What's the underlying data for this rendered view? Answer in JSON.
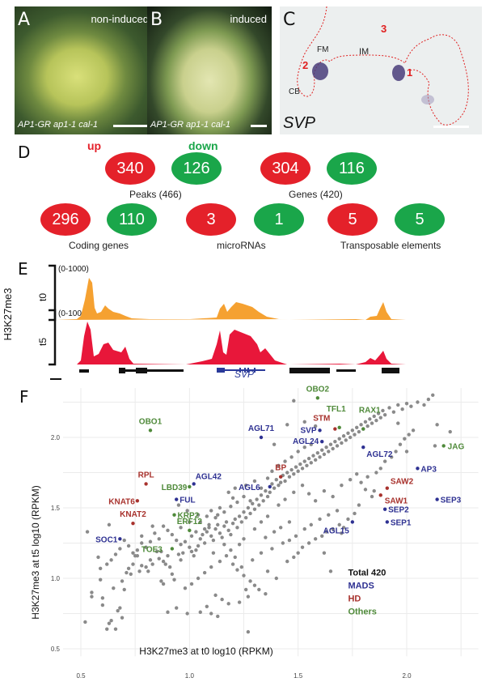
{
  "panels": {
    "A": {
      "letter": "A",
      "tag": "non-induced",
      "caption": "AP1-GR ap1-1 cal-1"
    },
    "B": {
      "letter": "B",
      "tag": "induced",
      "caption": "AP1-GR ap1-1 cal-1"
    },
    "C": {
      "letter": "C",
      "gene": "SVP",
      "labels": {
        "fm": "FM",
        "im": "IM",
        "cb": "CB",
        "n1": "1",
        "n2": "2",
        "n3": "3"
      }
    },
    "D": {
      "letter": "D",
      "up_label": "up",
      "down_label": "down",
      "colors": {
        "up": "#e4212a",
        "down": "#1aa64a"
      },
      "groups": [
        {
          "label": "Peaks (466)",
          "up": 340,
          "down": 126
        },
        {
          "label": "Genes (420)",
          "up": 304,
          "down": 116
        },
        {
          "label": "Coding genes",
          "up": 296,
          "down": 110
        },
        {
          "label": "microRNAs",
          "up": 3,
          "down": 1
        },
        {
          "label": "Transposable elements",
          "up": 5,
          "down": 5
        }
      ]
    },
    "E": {
      "letter": "E",
      "ylabel": "H3K27me3",
      "tracks": [
        {
          "name": "t0",
          "range": "(0-1000)",
          "color": "#f5a131"
        },
        {
          "name": "t5",
          "range": "(0-1000)",
          "color": "#e8173a"
        }
      ],
      "gene_label": "SVP",
      "gene_color": "#2a3a9a"
    }
  },
  "chart_data": {
    "type": "scatter",
    "panel_letter": "F",
    "xlabel": "H3K27me3 at t0 log10 (RPKM)",
    "ylabel": "H3K27me3 at t5 log10 (RPKM)",
    "xlim": [
      0.5,
      2.3
    ],
    "ylim": [
      0.47,
      2.35
    ],
    "xticks": [
      "0.5",
      "1.0",
      "1.5",
      "2.0"
    ],
    "yticks": [
      "0.5",
      "1.0",
      "1.5",
      "2.0"
    ],
    "xtick_values": [
      0.5,
      1.0,
      1.5,
      2.0
    ],
    "ytick_values": [
      0.5,
      1.0,
      1.5,
      2.0
    ],
    "grid": true,
    "legend": {
      "position": "bottom-right",
      "entries": [
        {
          "label": "Total 420",
          "color": "#111111"
        },
        {
          "label": "MADS",
          "color": "#2e3192"
        },
        {
          "label": "HD",
          "color": "#a8322d"
        },
        {
          "label": "Others",
          "color": "#4f8a3a"
        }
      ]
    },
    "category_colors": {
      "MADS": "#2e3192",
      "HD": "#a8322d",
      "Others": "#4f8a3a",
      "background": "#8a8a8a"
    },
    "labeled_points": [
      {
        "gene": "OBO1",
        "x": 0.82,
        "y": 2.05,
        "class": "Others"
      },
      {
        "gene": "OBO2",
        "x": 1.59,
        "y": 2.28,
        "class": "Others"
      },
      {
        "gene": "TFL1",
        "x": 1.69,
        "y": 2.07,
        "class": "Others"
      },
      {
        "gene": "STM",
        "x": 1.67,
        "y": 2.06,
        "class": "HD"
      },
      {
        "gene": "RAX1",
        "x": 1.8,
        "y": 2.06,
        "class": "Others"
      },
      {
        "gene": "AGL71",
        "x": 1.33,
        "y": 2.0,
        "class": "MADS"
      },
      {
        "gene": "SVP",
        "x": 1.6,
        "y": 2.05,
        "class": "MADS"
      },
      {
        "gene": "AGL24",
        "x": 1.61,
        "y": 1.97,
        "class": "MADS"
      },
      {
        "gene": "AGL72",
        "x": 1.8,
        "y": 1.93,
        "class": "MADS"
      },
      {
        "gene": "JAG",
        "x": 2.17,
        "y": 1.94,
        "class": "Others"
      },
      {
        "gene": "AP3",
        "x": 2.05,
        "y": 1.78,
        "class": "MADS"
      },
      {
        "gene": "BP",
        "x": 1.42,
        "y": 1.72,
        "class": "HD"
      },
      {
        "gene": "AGL6",
        "x": 1.37,
        "y": 1.65,
        "class": "MADS"
      },
      {
        "gene": "AGL42",
        "x": 1.02,
        "y": 1.67,
        "class": "MADS"
      },
      {
        "gene": "LBD39",
        "x": 1.0,
        "y": 1.65,
        "class": "Others"
      },
      {
        "gene": "RPL",
        "x": 0.8,
        "y": 1.67,
        "class": "HD"
      },
      {
        "gene": "FUL",
        "x": 0.94,
        "y": 1.56,
        "class": "MADS"
      },
      {
        "gene": "KNAT6",
        "x": 0.76,
        "y": 1.55,
        "class": "HD"
      },
      {
        "gene": "KNAT2",
        "x": 0.74,
        "y": 1.39,
        "class": "HD"
      },
      {
        "gene": "KRP2",
        "x": 0.93,
        "y": 1.45,
        "class": "Others"
      },
      {
        "gene": "ERF12",
        "x": 1.0,
        "y": 1.34,
        "class": "Others"
      },
      {
        "gene": "SAW2",
        "x": 1.91,
        "y": 1.64,
        "class": "HD"
      },
      {
        "gene": "SAW1",
        "x": 1.88,
        "y": 1.59,
        "class": "HD"
      },
      {
        "gene": "SEP3",
        "x": 2.14,
        "y": 1.56,
        "class": "MADS"
      },
      {
        "gene": "SEP2",
        "x": 1.9,
        "y": 1.49,
        "class": "MADS"
      },
      {
        "gene": "SEP1",
        "x": 1.91,
        "y": 1.4,
        "class": "MADS"
      },
      {
        "gene": "AGL15",
        "x": 1.75,
        "y": 1.4,
        "class": "MADS"
      },
      {
        "gene": "SOC1",
        "x": 0.68,
        "y": 1.28,
        "class": "MADS"
      },
      {
        "gene": "TOE3",
        "x": 0.92,
        "y": 1.21,
        "class": "Others"
      }
    ],
    "background_points": [
      [
        0.53,
        1.33
      ],
      [
        0.63,
        1.38
      ],
      [
        0.55,
        0.9
      ],
      [
        0.55,
        0.87
      ],
      [
        0.52,
        0.69
      ],
      [
        0.59,
        0.99
      ],
      [
        0.6,
        0.81
      ],
      [
        0.6,
        0.86
      ],
      [
        0.59,
        1.07
      ],
      [
        0.58,
        1.15
      ],
      [
        0.62,
        0.64
      ],
      [
        0.63,
        0.68
      ],
      [
        0.64,
        0.7
      ],
      [
        0.65,
        0.93
      ],
      [
        0.66,
        0.64
      ],
      [
        0.67,
        0.77
      ],
      [
        0.68,
        0.79
      ],
      [
        0.69,
        0.72
      ],
      [
        0.69,
        0.98
      ],
      [
        0.7,
        0.92
      ],
      [
        0.71,
        1.04
      ],
      [
        0.72,
        1.07
      ],
      [
        0.73,
        1.03
      ],
      [
        0.74,
        1.1
      ],
      [
        0.75,
        1.16
      ],
      [
        0.76,
        1.16
      ],
      [
        0.77,
        1.05
      ],
      [
        0.78,
        1.09
      ],
      [
        0.8,
        1.08
      ],
      [
        0.81,
        1.05
      ],
      [
        0.82,
        1.13
      ],
      [
        0.83,
        1.1
      ],
      [
        0.85,
        1.19
      ],
      [
        0.86,
        1.14
      ],
      [
        0.87,
        1.19
      ],
      [
        0.88,
        1.12
      ],
      [
        0.89,
        1.1
      ],
      [
        0.9,
        1.16
      ],
      [
        0.91,
        1.08
      ],
      [
        0.92,
        1.03
      ],
      [
        0.87,
        0.98
      ],
      [
        0.88,
        0.96
      ],
      [
        0.9,
        0.76
      ],
      [
        0.93,
        0.99
      ],
      [
        0.94,
        0.79
      ],
      [
        0.95,
        1.17
      ],
      [
        0.96,
        1.13
      ],
      [
        0.97,
        1.18
      ],
      [
        0.99,
        0.75
      ],
      [
        1.0,
        1.22
      ],
      [
        1.01,
        1.19
      ],
      [
        1.02,
        1.16
      ],
      [
        1.03,
        1.2
      ],
      [
        1.04,
        1.23
      ],
      [
        1.05,
        1.28
      ],
      [
        1.06,
        1.31
      ],
      [
        1.07,
        1.25
      ],
      [
        1.08,
        1.33
      ],
      [
        1.09,
        1.36
      ],
      [
        1.1,
        1.3
      ],
      [
        1.11,
        1.27
      ],
      [
        1.12,
        1.35
      ],
      [
        1.13,
        1.38
      ],
      [
        1.14,
        1.32
      ],
      [
        1.15,
        1.29
      ],
      [
        1.16,
        1.37
      ],
      [
        1.17,
        1.4
      ],
      [
        1.18,
        1.34
      ],
      [
        1.19,
        1.31
      ],
      [
        1.2,
        1.39
      ],
      [
        1.21,
        1.42
      ],
      [
        1.22,
        1.36
      ],
      [
        1.23,
        1.44
      ],
      [
        1.24,
        1.4
      ],
      [
        1.25,
        1.47
      ],
      [
        1.26,
        1.43
      ],
      [
        1.27,
        1.5
      ],
      [
        1.28,
        1.46
      ],
      [
        1.29,
        1.53
      ],
      [
        1.3,
        1.49
      ],
      [
        1.31,
        1.56
      ],
      [
        1.32,
        1.52
      ],
      [
        1.33,
        1.59
      ],
      [
        1.34,
        1.55
      ],
      [
        1.35,
        1.62
      ],
      [
        1.36,
        1.58
      ],
      [
        1.37,
        1.61
      ],
      [
        1.38,
        1.67
      ],
      [
        1.39,
        1.64
      ],
      [
        1.4,
        1.7
      ],
      [
        1.41,
        1.66
      ],
      [
        1.42,
        1.68
      ],
      [
        1.43,
        1.73
      ],
      [
        1.44,
        1.69
      ],
      [
        1.45,
        1.75
      ],
      [
        1.46,
        1.72
      ],
      [
        1.47,
        1.77
      ],
      [
        1.48,
        1.74
      ],
      [
        1.49,
        1.79
      ],
      [
        1.5,
        1.76
      ],
      [
        1.51,
        1.81
      ],
      [
        1.52,
        1.78
      ],
      [
        1.53,
        1.83
      ],
      [
        1.54,
        1.8
      ],
      [
        1.55,
        1.85
      ],
      [
        1.56,
        1.82
      ],
      [
        1.57,
        1.87
      ],
      [
        1.58,
        1.84
      ],
      [
        1.59,
        1.89
      ],
      [
        1.6,
        1.86
      ],
      [
        1.61,
        1.91
      ],
      [
        1.62,
        1.88
      ],
      [
        1.63,
        1.93
      ],
      [
        1.64,
        1.9
      ],
      [
        1.65,
        1.95
      ],
      [
        1.66,
        1.92
      ],
      [
        1.67,
        1.97
      ],
      [
        1.68,
        1.94
      ],
      [
        1.69,
        1.99
      ],
      [
        1.7,
        1.96
      ],
      [
        1.71,
        2.01
      ],
      [
        1.72,
        1.98
      ],
      [
        1.73,
        2.03
      ],
      [
        1.74,
        2.0
      ],
      [
        1.75,
        2.05
      ],
      [
        1.76,
        2.02
      ],
      [
        1.77,
        2.07
      ],
      [
        1.78,
        2.04
      ],
      [
        1.79,
        2.09
      ],
      [
        1.8,
        2.06
      ],
      [
        1.81,
        2.11
      ],
      [
        1.82,
        2.08
      ],
      [
        1.83,
        2.13
      ],
      [
        1.84,
        2.1
      ],
      [
        1.85,
        2.15
      ],
      [
        1.86,
        2.12
      ],
      [
        1.87,
        2.17
      ],
      [
        1.88,
        2.14
      ],
      [
        1.89,
        2.19
      ],
      [
        1.9,
        2.16
      ],
      [
        1.92,
        2.21
      ],
      [
        1.94,
        2.18
      ],
      [
        1.96,
        2.23
      ],
      [
        1.98,
        2.2
      ],
      [
        2.0,
        2.24
      ],
      [
        2.02,
        2.22
      ],
      [
        2.05,
        2.25
      ],
      [
        2.08,
        2.23
      ],
      [
        2.1,
        2.27
      ],
      [
        2.12,
        2.3
      ],
      [
        2.14,
        2.09
      ],
      [
        2.2,
        2.04
      ],
      [
        2.13,
        1.94
      ],
      [
        2.0,
        1.9
      ],
      [
        1.48,
        2.26
      ],
      [
        1.39,
        1.95
      ],
      [
        1.45,
        2.09
      ],
      [
        1.53,
        2.11
      ],
      [
        1.58,
        2.08
      ],
      [
        1.13,
        1.45
      ],
      [
        1.16,
        1.47
      ],
      [
        1.19,
        1.51
      ],
      [
        1.2,
        1.57
      ],
      [
        1.22,
        1.54
      ],
      [
        1.25,
        1.58
      ],
      [
        1.28,
        1.55
      ],
      [
        1.18,
        1.61
      ],
      [
        1.21,
        1.64
      ],
      [
        1.26,
        1.66
      ],
      [
        1.3,
        1.69
      ],
      [
        1.33,
        1.64
      ],
      [
        1.36,
        1.71
      ],
      [
        1.38,
        1.76
      ],
      [
        1.41,
        1.8
      ],
      [
        1.44,
        1.83
      ],
      [
        1.47,
        1.86
      ],
      [
        1.5,
        1.9
      ],
      [
        1.53,
        1.93
      ],
      [
        1.56,
        1.95
      ],
      [
        1.05,
        1.4
      ],
      [
        1.08,
        1.44
      ],
      [
        1.1,
        1.48
      ],
      [
        1.12,
        1.43
      ],
      [
        1.14,
        1.5
      ],
      [
        1.09,
        1.38
      ],
      [
        1.07,
        1.35
      ],
      [
        1.03,
        1.33
      ],
      [
        1.01,
        1.3
      ],
      [
        0.98,
        1.26
      ],
      [
        0.96,
        1.24
      ],
      [
        0.94,
        1.27
      ],
      [
        0.92,
        1.31
      ],
      [
        0.9,
        1.34
      ],
      [
        0.88,
        1.37
      ],
      [
        0.86,
        1.28
      ],
      [
        0.84,
        1.32
      ],
      [
        0.82,
        1.26
      ],
      [
        0.8,
        1.22
      ],
      [
        0.78,
        1.25
      ],
      [
        0.76,
        1.2
      ],
      [
        0.74,
        1.18
      ],
      [
        0.72,
        1.23
      ],
      [
        0.7,
        1.27
      ],
      [
        0.68,
        1.21
      ],
      [
        0.66,
        1.17
      ],
      [
        0.64,
        1.13
      ],
      [
        0.62,
        1.1
      ],
      [
        0.78,
        1.3
      ],
      [
        0.83,
        1.37
      ],
      [
        1.2,
        1.1
      ],
      [
        1.22,
        1.06
      ],
      [
        1.25,
        1.02
      ],
      [
        1.28,
        0.98
      ],
      [
        1.3,
        0.95
      ],
      [
        1.32,
        0.92
      ],
      [
        1.35,
        0.89
      ],
      [
        1.12,
        0.88
      ],
      [
        1.15,
        0.85
      ],
      [
        1.18,
        0.82
      ],
      [
        1.08,
        0.8
      ],
      [
        1.05,
        0.76
      ],
      [
        1.1,
        0.75
      ],
      [
        1.13,
        0.73
      ],
      [
        1.23,
        0.83
      ],
      [
        1.27,
        0.87
      ],
      [
        1.36,
        1.05
      ],
      [
        1.4,
        1.0
      ],
      [
        1.45,
        1.12
      ],
      [
        1.48,
        1.15
      ],
      [
        1.5,
        1.18
      ],
      [
        1.52,
        1.22
      ],
      [
        1.55,
        1.25
      ],
      [
        1.58,
        1.28
      ],
      [
        1.61,
        1.3
      ],
      [
        1.63,
        1.33
      ],
      [
        1.66,
        1.35
      ],
      [
        1.69,
        1.38
      ],
      [
        1.71,
        1.36
      ],
      [
        1.73,
        1.42
      ],
      [
        1.62,
        1.18
      ],
      [
        1.65,
        1.05
      ],
      [
        1.7,
        1.32
      ],
      [
        1.43,
        1.25
      ],
      [
        1.46,
        1.27
      ],
      [
        1.38,
        1.21
      ],
      [
        1.33,
        1.18
      ],
      [
        1.29,
        1.13
      ],
      [
        1.24,
        1.08
      ],
      [
        1.21,
        1.15
      ],
      [
        1.27,
        0.62
      ],
      [
        1.26,
        0.92
      ],
      [
        1.35,
        1.29
      ],
      [
        1.16,
        1.24
      ],
      [
        1.11,
        1.18
      ],
      [
        0.96,
        1.36
      ],
      [
        1.0,
        1.4
      ],
      [
        1.04,
        1.45
      ],
      [
        0.99,
        1.48
      ],
      [
        0.95,
        1.52
      ],
      [
        1.41,
        1.52
      ],
      [
        1.44,
        1.56
      ],
      [
        1.48,
        1.61
      ],
      [
        1.52,
        1.66
      ],
      [
        1.55,
        1.6
      ],
      [
        1.58,
        1.55
      ],
      [
        1.62,
        1.62
      ],
      [
        1.66,
        1.58
      ],
      [
        1.7,
        1.66
      ],
      [
        1.74,
        1.7
      ],
      [
        1.77,
        1.74
      ],
      [
        1.79,
        1.68
      ],
      [
        1.82,
        1.72
      ],
      [
        1.85,
        1.62
      ],
      [
        1.84,
        1.58
      ],
      [
        1.81,
        1.63
      ],
      [
        1.78,
        1.52
      ],
      [
        1.76,
        1.46
      ],
      [
        1.68,
        1.48
      ],
      [
        1.64,
        1.45
      ],
      [
        1.86,
        1.75
      ],
      [
        1.88,
        1.78
      ],
      [
        1.9,
        1.83
      ],
      [
        1.93,
        1.86
      ],
      [
        1.95,
        1.9
      ],
      [
        1.97,
        1.95
      ],
      [
        1.99,
        1.99
      ],
      [
        2.01,
        2.02
      ],
      [
        2.03,
        2.05
      ],
      [
        1.96,
        2.1
      ],
      [
        1.6,
        1.42
      ],
      [
        1.56,
        1.38
      ],
      [
        1.53,
        1.35
      ],
      [
        1.49,
        1.3
      ],
      [
        1.46,
        1.4
      ],
      [
        1.42,
        1.36
      ],
      [
        1.39,
        1.33
      ],
      [
        1.36,
        1.44
      ],
      [
        1.33,
        1.4
      ],
      [
        1.3,
        1.35
      ],
      [
        1.25,
        1.28
      ],
      [
        1.23,
        1.24
      ],
      [
        1.19,
        1.2
      ],
      [
        1.17,
        1.16
      ],
      [
        1.14,
        1.12
      ],
      [
        1.1,
        1.08
      ],
      [
        1.07,
        1.04
      ],
      [
        1.04,
        1.0
      ],
      [
        1.01,
        0.96
      ],
      [
        0.98,
        0.93
      ]
    ]
  }
}
